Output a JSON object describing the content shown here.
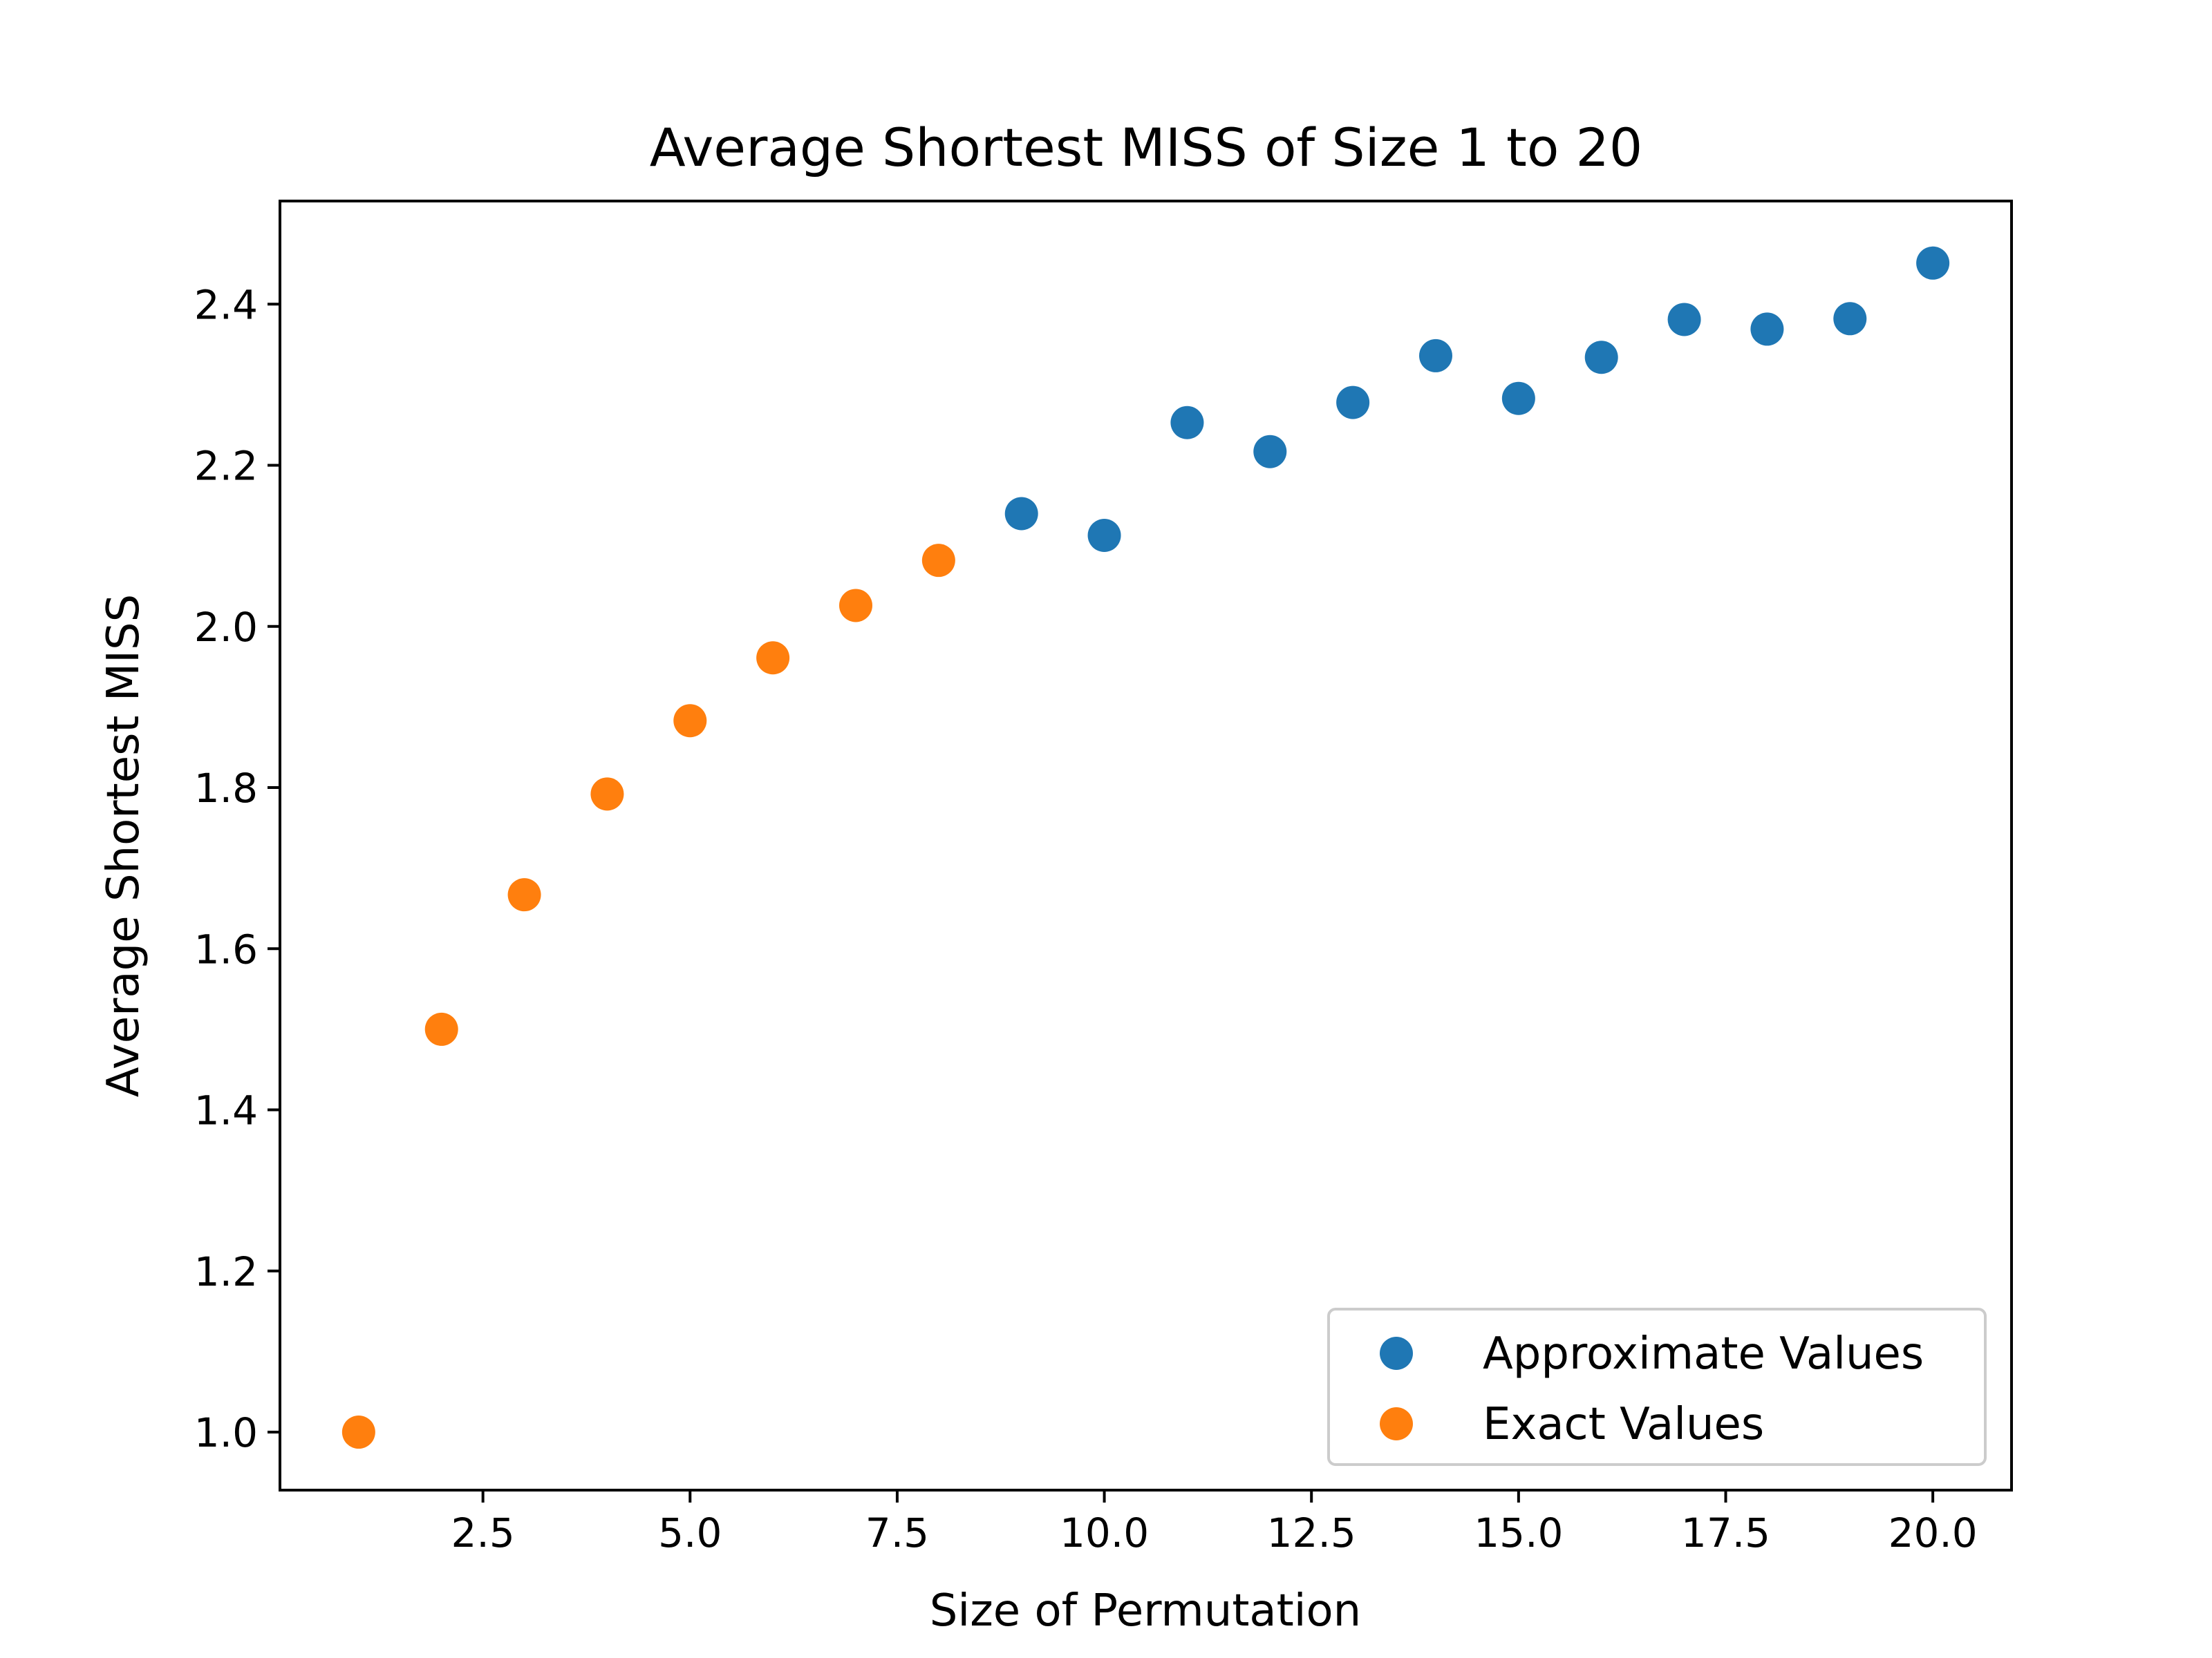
{
  "chart_data": {
    "type": "scatter",
    "title": "Average Shortest MISS of Size 1 to 20",
    "xlabel": "Size of Permutation",
    "ylabel": "Average Shortest MISS",
    "xlim": [
      0.05,
      20.95
    ],
    "ylim": [
      0.928,
      2.528
    ],
    "xticks": [
      2.5,
      5.0,
      7.5,
      10.0,
      12.5,
      15.0,
      17.5,
      20.0
    ],
    "xtick_labels": [
      "2.5",
      "5.0",
      "7.5",
      "10.0",
      "12.5",
      "15.0",
      "17.5",
      "20.0"
    ],
    "yticks": [
      1.0,
      1.2,
      1.4,
      1.6,
      1.8,
      2.0,
      2.2,
      2.4
    ],
    "ytick_labels": [
      "1.0",
      "1.2",
      "1.4",
      "1.6",
      "1.8",
      "2.0",
      "2.2",
      "2.4"
    ],
    "grid": false,
    "legend_position": "lower-right",
    "series": [
      {
        "name": "Approximate Values",
        "color": "#1f77b4",
        "x": [
          9,
          10,
          11,
          12,
          13,
          14,
          15,
          16,
          17,
          18,
          19,
          20
        ],
        "y": [
          2.14,
          2.113,
          2.253,
          2.217,
          2.278,
          2.336,
          2.283,
          2.334,
          2.381,
          2.369,
          2.382,
          2.451
        ]
      },
      {
        "name": "Exact Values",
        "color": "#ff7f0e",
        "x": [
          1,
          2,
          3,
          4,
          5,
          6,
          7,
          8
        ],
        "y": [
          1.0,
          1.5,
          1.667,
          1.792,
          1.883,
          1.961,
          2.026,
          2.082
        ]
      }
    ]
  }
}
